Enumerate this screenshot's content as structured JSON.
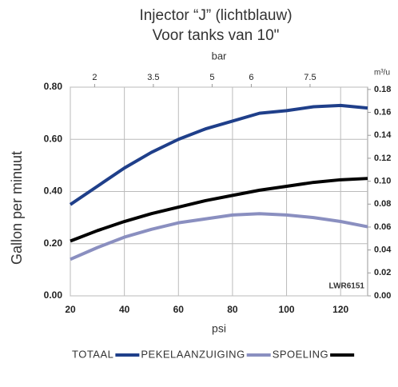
{
  "chart_data": {
    "type": "line",
    "title": "Injector “J” (lichtblauw)",
    "subtitle": "Voor tanks van 10\"",
    "x_label": "psi",
    "x2_label": "bar",
    "y_label": "Gallon per minuut",
    "y2_label": "m³/u",
    "annotation": "LWR6151",
    "x": [
      20,
      30,
      40,
      50,
      60,
      70,
      80,
      90,
      100,
      110,
      120,
      130
    ],
    "series": [
      {
        "name": "TOTAAL",
        "color": "#1f3f8a",
        "values": [
          0.35,
          0.42,
          0.49,
          0.55,
          0.6,
          0.64,
          0.67,
          0.7,
          0.71,
          0.725,
          0.73,
          0.72
        ]
      },
      {
        "name": "PEKELAANZUIGING",
        "color": "#8a8fc0",
        "values": [
          0.14,
          0.185,
          0.225,
          0.255,
          0.28,
          0.295,
          0.31,
          0.315,
          0.31,
          0.3,
          0.285,
          0.265
        ]
      },
      {
        "name": "SPOELING",
        "color": "#000000",
        "values": [
          0.21,
          0.25,
          0.285,
          0.315,
          0.34,
          0.365,
          0.385,
          0.405,
          0.42,
          0.435,
          0.445,
          0.45
        ]
      }
    ],
    "xlim": [
      20,
      130
    ],
    "xticks": [
      20,
      40,
      60,
      80,
      100,
      120
    ],
    "x2lim": [
      1.38,
      8.97
    ],
    "x2ticks": [
      2,
      3.5,
      5,
      6,
      7.5
    ],
    "ylim": [
      0,
      0.8
    ],
    "yticks": [
      {
        "value": 0,
        "label": "0.00"
      },
      {
        "value": 0.2,
        "label": "0.20"
      },
      {
        "value": 0.4,
        "label": "0.40"
      },
      {
        "value": 0.6,
        "label": "0.60"
      },
      {
        "value": 0.8,
        "label": "0.80"
      }
    ],
    "y2lim": [
      0,
      0.182
    ],
    "y2ticks": [
      {
        "value": 0,
        "label": "0.00"
      },
      0.02,
      0.04,
      0.06,
      0.08,
      {
        "value": 0.1,
        "label": "0.10"
      },
      0.12,
      0.14,
      0.16,
      0.18
    ],
    "grid": true
  }
}
